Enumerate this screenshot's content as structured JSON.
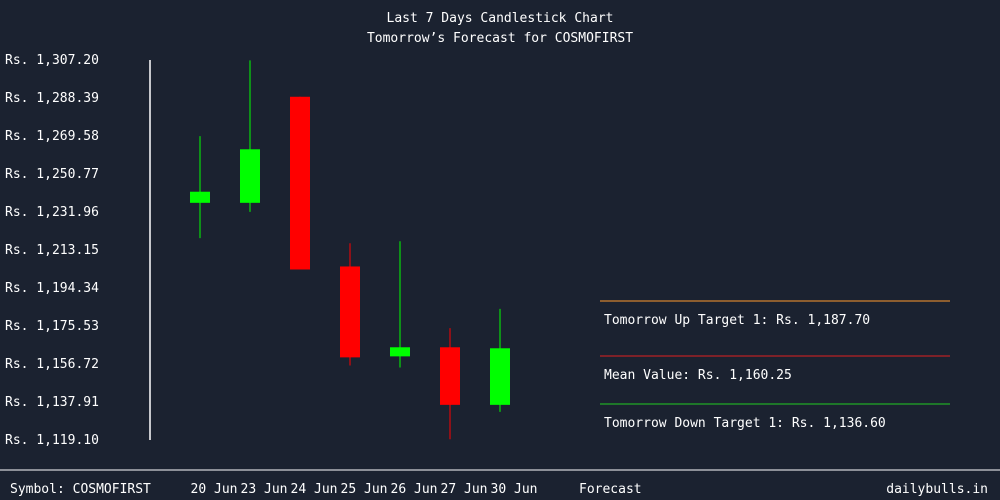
{
  "chart_data": {
    "type": "candlestick",
    "title": "Last 7 Days Candlestick Chart",
    "subtitle": "Tomorrow’s Forecast for COSMOFIRST",
    "y_ticks": [
      "Rs. 1,307.20",
      "Rs. 1,288.39",
      "Rs. 1,269.58",
      "Rs. 1,250.77",
      "Rs. 1,231.96",
      "Rs. 1,213.15",
      "Rs. 1,194.34",
      "Rs. 1,175.53",
      "Rs. 1,156.72",
      "Rs. 1,137.91",
      "Rs. 1,119.10"
    ],
    "ylim": [
      1119.1,
      1307.2
    ],
    "candles": [
      {
        "date": "20 Jun",
        "open": 1236.5,
        "close": 1242.0,
        "high": 1269.5,
        "low": 1219.0,
        "color": "#00ff00"
      },
      {
        "date": "23 Jun",
        "open": 1236.5,
        "close": 1263.0,
        "high": 1307.0,
        "low": 1232.0,
        "color": "#00ff00"
      },
      {
        "date": "24 Jun",
        "open": 1289.0,
        "close": 1203.5,
        "high": 1289.0,
        "low": 1203.5,
        "color": "#ff0000"
      },
      {
        "date": "25 Jun",
        "open": 1205.0,
        "close": 1160.0,
        "high": 1216.5,
        "low": 1156.0,
        "color": "#ff0000"
      },
      {
        "date": "26 Jun",
        "open": 1160.5,
        "close": 1165.0,
        "high": 1217.5,
        "low": 1155.0,
        "color": "#00ff00"
      },
      {
        "date": "27 Jun",
        "open": 1165.0,
        "close": 1136.5,
        "high": 1174.5,
        "low": 1119.5,
        "color": "#ff0000"
      },
      {
        "date": "30 Jun",
        "open": 1136.5,
        "close": 1164.5,
        "high": 1184.0,
        "low": 1133.0,
        "color": "#00ff00"
      }
    ],
    "forecast_label": "Forecast",
    "forecast": [
      {
        "label": "Tomorrow Up Target 1: Rs. 1,187.70",
        "color": "#ff9a2e"
      },
      {
        "label": "Mean Value: Rs. 1,160.25",
        "color": "#e02020"
      },
      {
        "label": "Tomorrow Down Target 1: Rs. 1,136.60",
        "color": "#22cc22"
      }
    ]
  },
  "footer": {
    "symbol": "Symbol: COSMOFIRST",
    "site": "dailybulls.in"
  }
}
